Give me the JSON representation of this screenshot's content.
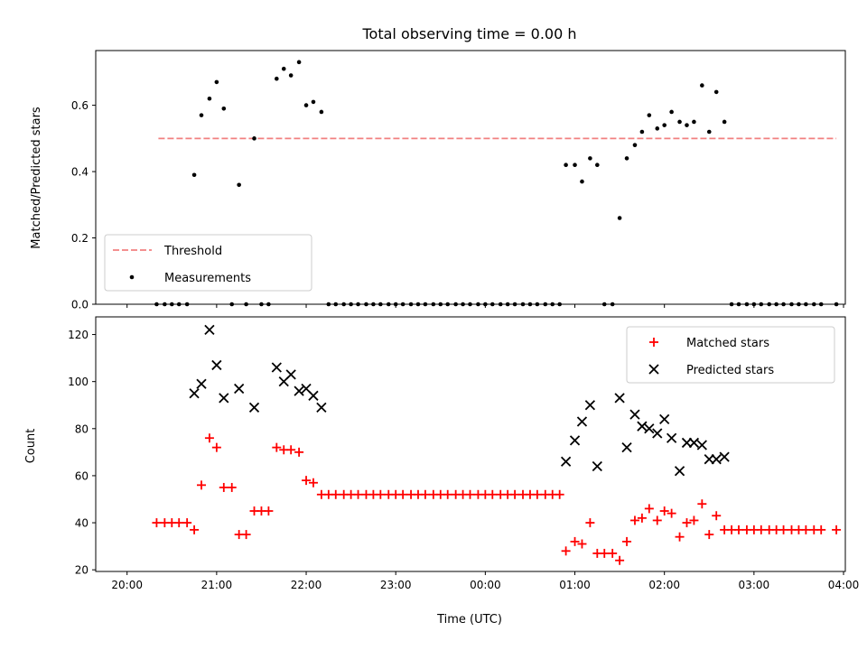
{
  "chart_data": [
    {
      "type": "scatter",
      "title": "Total observing time = 0.00 h",
      "xlabel": "",
      "ylabel": "Matched/Predicted stars",
      "xlim": [
        -0.35,
        8.02
      ],
      "ylim": [
        0,
        0.765
      ],
      "yticks": [
        0.0,
        0.2,
        0.4,
        0.6
      ],
      "yticklabels": [
        "0.0",
        "0.2",
        "0.4",
        "0.6"
      ],
      "xticks": [
        0,
        1,
        2,
        3,
        4,
        5,
        6,
        7,
        8
      ],
      "legend": {
        "position": "lower-left",
        "entries": [
          {
            "label": "Threshold",
            "style": "dashed-line",
            "color": "#f28080"
          },
          {
            "label": "Measurements",
            "style": "dot",
            "color": "#000000"
          }
        ]
      },
      "series": [
        {
          "name": "Threshold",
          "kind": "line",
          "color": "#f28080",
          "x": [
            0.35,
            7.92
          ],
          "y": [
            0.5,
            0.5
          ]
        },
        {
          "name": "Measurements",
          "kind": "scatter",
          "color": "#000000",
          "x": [
            0.33,
            0.42,
            0.5,
            0.58,
            0.67,
            0.75,
            0.83,
            0.92,
            1.0,
            1.08,
            1.17,
            1.25,
            1.33,
            1.42,
            1.5,
            1.58,
            1.67,
            1.75,
            1.83,
            1.92,
            2.0,
            2.08,
            2.17,
            2.25,
            2.33,
            2.42,
            2.5,
            2.58,
            2.67,
            2.75,
            2.83,
            2.92,
            3.0,
            3.08,
            3.17,
            3.25,
            3.33,
            3.42,
            3.5,
            3.58,
            3.67,
            3.75,
            3.83,
            3.92,
            4.0,
            4.08,
            4.17,
            4.25,
            4.33,
            4.42,
            4.5,
            4.58,
            4.67,
            4.75,
            4.83,
            4.9,
            5.0,
            5.08,
            5.17,
            5.25,
            5.33,
            5.42,
            5.5,
            5.58,
            5.67,
            5.75,
            5.83,
            5.92,
            6.0,
            6.08,
            6.17,
            6.25,
            6.33,
            6.42,
            6.5,
            6.58,
            6.67,
            6.75,
            6.83,
            6.92,
            7.0,
            7.08,
            7.17,
            7.25,
            7.33,
            7.42,
            7.5,
            7.58,
            7.67,
            7.75,
            7.92
          ],
          "y": [
            0,
            0,
            0,
            0,
            0,
            0.39,
            0.57,
            0.62,
            0.67,
            0.59,
            0,
            0.36,
            0,
            0.5,
            0,
            0,
            0.68,
            0.71,
            0.69,
            0.73,
            0.6,
            0.61,
            0.58,
            0,
            0,
            0,
            0,
            0,
            0,
            0,
            0,
            0,
            0,
            0,
            0,
            0,
            0,
            0,
            0,
            0,
            0,
            0,
            0,
            0,
            0,
            0,
            0,
            0,
            0,
            0,
            0,
            0,
            0,
            0,
            0,
            0.42,
            0.42,
            0.37,
            0.44,
            0.42,
            0,
            0,
            0.26,
            0.44,
            0.48,
            0.52,
            0.57,
            0.53,
            0.54,
            0.58,
            0.55,
            0.54,
            0.55,
            0.66,
            0.52,
            0.64,
            0.55,
            0,
            0,
            0,
            0,
            0,
            0,
            0,
            0,
            0,
            0,
            0,
            0,
            0,
            0
          ]
        }
      ]
    },
    {
      "type": "scatter",
      "title": "",
      "xlabel": "Time (UTC)",
      "ylabel": "Count",
      "xlim": [
        -0.35,
        8.02
      ],
      "ylim": [
        19.3,
        127.5
      ],
      "yticks": [
        20,
        40,
        60,
        80,
        100,
        120
      ],
      "yticklabels": [
        "20",
        "40",
        "60",
        "80",
        "100",
        "120"
      ],
      "xticks": [
        0,
        1,
        2,
        3,
        4,
        5,
        6,
        7,
        8
      ],
      "xticklabels": [
        "20:00",
        "21:00",
        "22:00",
        "23:00",
        "00:00",
        "01:00",
        "02:00",
        "03:00",
        "04:00"
      ],
      "legend": {
        "position": "upper-right",
        "entries": [
          {
            "label": "Matched stars",
            "style": "plus",
            "color": "#ff0000"
          },
          {
            "label": "Predicted stars",
            "style": "cross",
            "color": "#000000"
          }
        ]
      },
      "series": [
        {
          "name": "Matched stars",
          "kind": "plus",
          "color": "#ff0000",
          "x": [
            0.33,
            0.42,
            0.5,
            0.58,
            0.67,
            0.75,
            0.83,
            0.92,
            1.0,
            1.08,
            1.17,
            1.25,
            1.33,
            1.42,
            1.5,
            1.58,
            1.67,
            1.75,
            1.83,
            1.92,
            2.0,
            2.08,
            2.17,
            2.25,
            2.33,
            2.42,
            2.5,
            2.58,
            2.67,
            2.75,
            2.83,
            2.92,
            3.0,
            3.08,
            3.17,
            3.25,
            3.33,
            3.42,
            3.5,
            3.58,
            3.67,
            3.75,
            3.83,
            3.92,
            4.0,
            4.08,
            4.17,
            4.25,
            4.33,
            4.42,
            4.5,
            4.58,
            4.67,
            4.75,
            4.83,
            4.9,
            5.0,
            5.08,
            5.17,
            5.25,
            5.33,
            5.42,
            5.5,
            5.58,
            5.67,
            5.75,
            5.83,
            5.92,
            6.0,
            6.08,
            6.17,
            6.25,
            6.33,
            6.42,
            6.5,
            6.58,
            6.67,
            6.75,
            6.83,
            6.92,
            7.0,
            7.08,
            7.17,
            7.25,
            7.33,
            7.42,
            7.5,
            7.58,
            7.67,
            7.75,
            7.92
          ],
          "y": [
            40,
            40,
            40,
            40,
            40,
            37,
            56,
            76,
            72,
            55,
            55,
            35,
            35,
            45,
            45,
            45,
            72,
            71,
            71,
            70,
            58,
            57,
            52,
            52,
            52,
            52,
            52,
            52,
            52,
            52,
            52,
            52,
            52,
            52,
            52,
            52,
            52,
            52,
            52,
            52,
            52,
            52,
            52,
            52,
            52,
            52,
            52,
            52,
            52,
            52,
            52,
            52,
            52,
            52,
            52,
            28,
            32,
            31,
            40,
            27,
            27,
            27,
            24,
            32,
            41,
            42,
            46,
            41,
            45,
            44,
            34,
            40,
            41,
            48,
            35,
            43,
            37,
            37,
            37,
            37,
            37,
            37,
            37,
            37,
            37,
            37,
            37,
            37,
            37,
            37,
            37
          ]
        },
        {
          "name": "Predicted stars",
          "kind": "cross",
          "color": "#000000",
          "x": [
            0.75,
            0.83,
            0.92,
            1.0,
            1.08,
            1.25,
            1.42,
            1.67,
            1.75,
            1.83,
            1.92,
            2.0,
            2.08,
            2.17,
            4.9,
            5.0,
            5.08,
            5.17,
            5.25,
            5.5,
            5.58,
            5.67,
            5.75,
            5.83,
            5.92,
            6.0,
            6.08,
            6.17,
            6.25,
            6.33,
            6.42,
            6.5,
            6.58,
            6.67
          ],
          "y": [
            95,
            99,
            122,
            107,
            93,
            97,
            89,
            106,
            100,
            103,
            96,
            97,
            94,
            89,
            66,
            75,
            83,
            90,
            64,
            93,
            72,
            86,
            81,
            80,
            78,
            84,
            76,
            62,
            74,
            74,
            73,
            67,
            67,
            68
          ]
        }
      ]
    }
  ]
}
